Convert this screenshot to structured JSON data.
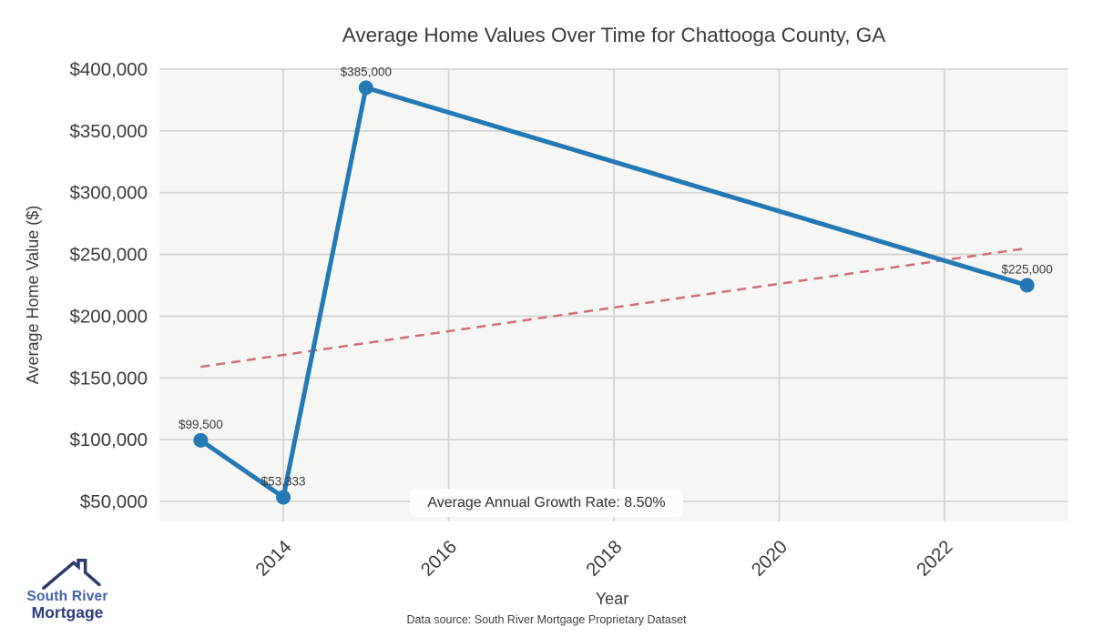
{
  "footer": {
    "source": "Data source: South River Mortgage Proprietary Dataset"
  },
  "logo": {
    "line1": "South River",
    "line2": "Mortgage",
    "roof_color": "#2d3a6d",
    "text_top_color": "#4060ac",
    "text_bottom_color": "#2e3a7c"
  },
  "chart_data": {
    "type": "line",
    "title": "Average Home Values Over Time for Chattooga County, GA",
    "xlabel": "Year",
    "ylabel": "Average Home Value ($)",
    "x": [
      2013,
      2014,
      2015,
      2023
    ],
    "series": [
      {
        "name": "Average Home Value",
        "values": [
          99500,
          53333,
          385000,
          225000
        ],
        "point_labels": [
          "$99,500",
          "$53,333",
          "$385,000",
          "$225,000"
        ],
        "color": "#2478b4"
      }
    ],
    "trend_line": {
      "name": "Linear trend",
      "x": [
        2013,
        2023
      ],
      "values": [
        159000,
        255000
      ],
      "color": "#cf6f79",
      "style": "dashed"
    },
    "annotation": {
      "text": "Average Annual Growth Rate: 8.50%"
    },
    "xlim": [
      2012.5,
      2023.5
    ],
    "ylim": [
      33800,
      400000
    ],
    "xticks": {
      "values": [
        2014,
        2016,
        2018,
        2020,
        2022
      ],
      "labels": [
        "2014",
        "2016",
        "2018",
        "2020",
        "2022"
      ]
    },
    "yticks": {
      "values": [
        50000,
        100000,
        150000,
        200000,
        250000,
        300000,
        350000,
        400000
      ],
      "labels": [
        "$50,000",
        "$100,000",
        "$150,000",
        "$200,000",
        "$250,000",
        "$300,000",
        "$350,000",
        "$400,000"
      ]
    },
    "grid": true,
    "legend": "none",
    "plot_bg": "#f6f6f4",
    "grid_color": "#d3d3d3"
  }
}
